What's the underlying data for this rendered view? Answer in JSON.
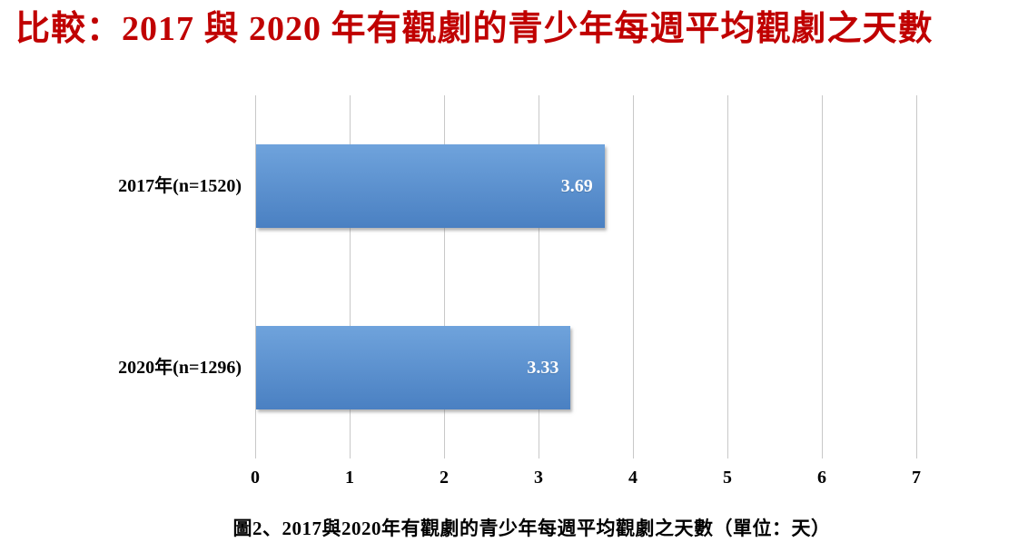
{
  "title": "比較：2017 與 2020 年有觀劇的青少年每週平均觀劇之天數",
  "caption": "圖2、2017與2020年有觀劇的青少年每週平均觀劇之天數（單位：天）",
  "colors": {
    "title_red": "#C00000",
    "bar_gradient_top": "#6FA3DC",
    "bar_gradient_bottom": "#4A80C2",
    "gridline": "#C8C8C8",
    "value_label": "#FFFFFF",
    "axis_text": "#000000"
  },
  "chart_data": {
    "type": "bar",
    "orientation": "horizontal",
    "title": "比較：2017 與 2020 年有觀劇的青少年每週平均觀劇之天數",
    "caption": "圖2、2017與2020年有觀劇的青少年每週平均觀劇之天數（單位：天）",
    "categories": [
      "2017年(n=1520)",
      "2020年(n=1296)"
    ],
    "values": [
      3.69,
      3.33
    ],
    "value_labels": [
      "3.69",
      "3.33"
    ],
    "xlabel": "",
    "ylabel": "",
    "unit": "天",
    "xlim": [
      0,
      7
    ],
    "xticks": [
      0,
      1,
      2,
      3,
      4,
      5,
      6,
      7
    ],
    "grid": true,
    "legend": false
  }
}
